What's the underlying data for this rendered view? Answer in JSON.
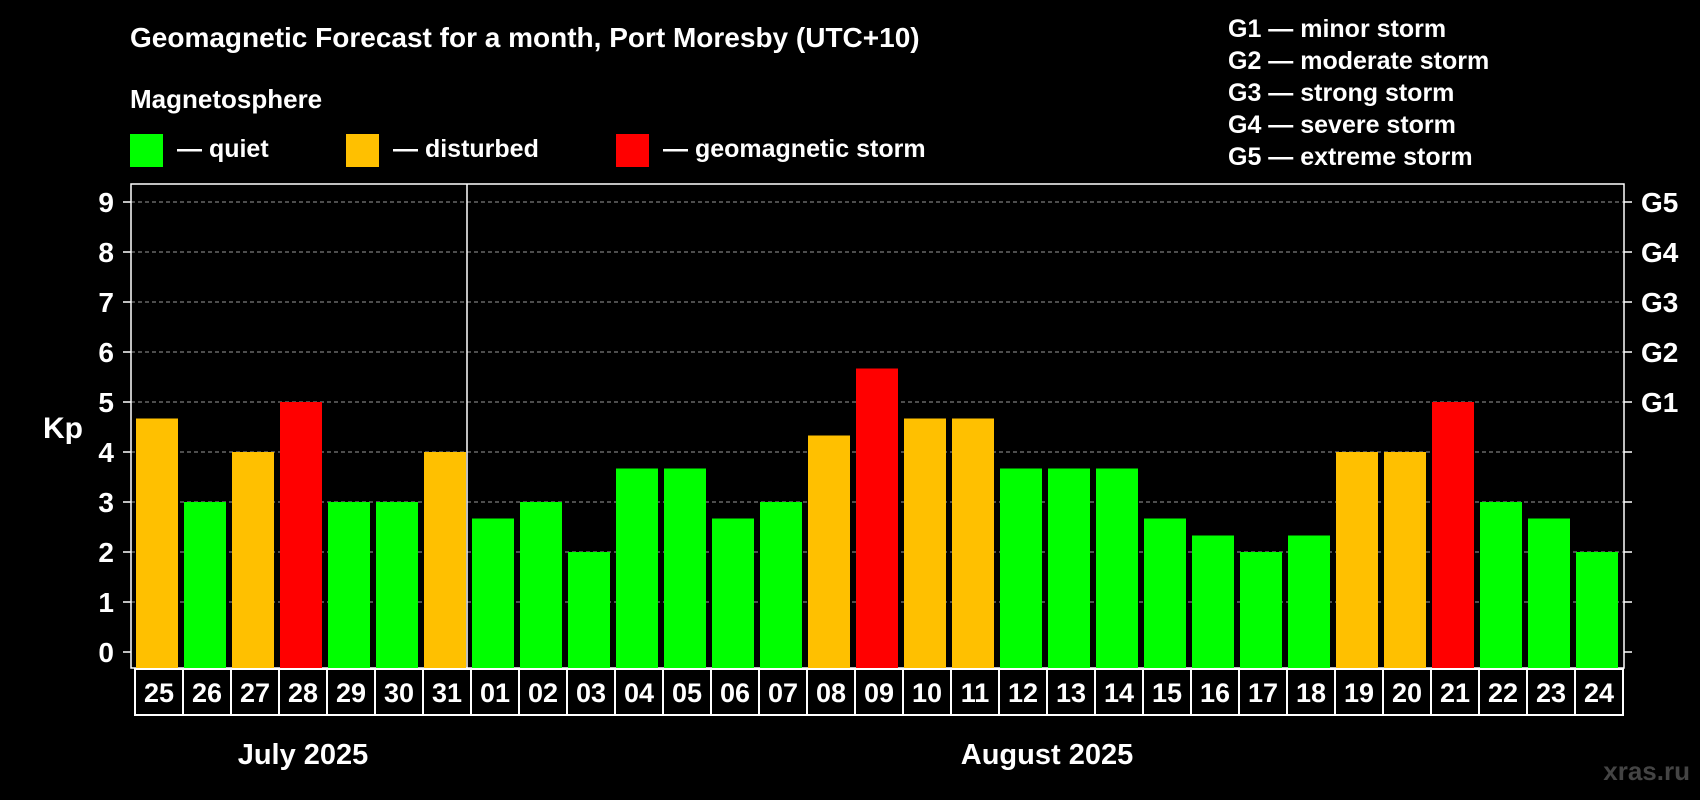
{
  "chart_data": {
    "type": "bar",
    "title": "Geomagnetic Forecast for a month, Port Moresby (UTC+10)",
    "legend_title": "Magnetosphere",
    "legend": [
      {
        "label": "— quiet",
        "color": "#00ff00"
      },
      {
        "label": "— disturbed",
        "color": "#ffc000"
      },
      {
        "label": "— geomagnetic storm",
        "color": "#ff0000"
      }
    ],
    "storm_scale": [
      "G1 — minor storm",
      "G2 — moderate storm",
      "G3 — strong storm",
      "G4 — severe storm",
      "G5 — extreme storm"
    ],
    "ylabel": "Kp",
    "ylim": [
      0,
      9
    ],
    "y_ticks": [
      "0",
      "1",
      "2",
      "3",
      "4",
      "5",
      "6",
      "7",
      "8",
      "9"
    ],
    "right_labels": [
      {
        "kp": 5,
        "label": "G1"
      },
      {
        "kp": 6,
        "label": "G2"
      },
      {
        "kp": 7,
        "label": "G3"
      },
      {
        "kp": 8,
        "label": "G4"
      },
      {
        "kp": 9,
        "label": "G5"
      }
    ],
    "categories": [
      "25",
      "26",
      "27",
      "28",
      "29",
      "30",
      "31",
      "01",
      "02",
      "03",
      "04",
      "05",
      "06",
      "07",
      "08",
      "09",
      "10",
      "11",
      "12",
      "13",
      "14",
      "15",
      "16",
      "17",
      "18",
      "19",
      "20",
      "21",
      "22",
      "23",
      "24"
    ],
    "values": [
      4.67,
      3,
      4,
      5,
      3,
      3,
      4,
      2.67,
      3,
      2,
      3.67,
      3.67,
      2.67,
      3,
      4.33,
      5.67,
      4.67,
      4.67,
      3.67,
      3.67,
      3.67,
      2.67,
      2.33,
      2,
      2.33,
      4,
      4,
      5,
      3,
      2.67,
      2
    ],
    "status": [
      "disturbed",
      "quiet",
      "disturbed",
      "storm",
      "quiet",
      "quiet",
      "disturbed",
      "quiet",
      "quiet",
      "quiet",
      "quiet",
      "quiet",
      "quiet",
      "quiet",
      "disturbed",
      "storm",
      "disturbed",
      "disturbed",
      "quiet",
      "quiet",
      "quiet",
      "quiet",
      "quiet",
      "quiet",
      "quiet",
      "disturbed",
      "disturbed",
      "storm",
      "quiet",
      "quiet",
      "quiet"
    ],
    "colors": {
      "quiet": "#00ff00",
      "disturbed": "#ffc000",
      "storm": "#ff0000"
    },
    "months": [
      {
        "label": "July 2025",
        "start": 0,
        "end": 6
      },
      {
        "label": "August 2025",
        "start": 7,
        "end": 30
      }
    ],
    "grid": true
  },
  "watermark": "xras.ru"
}
